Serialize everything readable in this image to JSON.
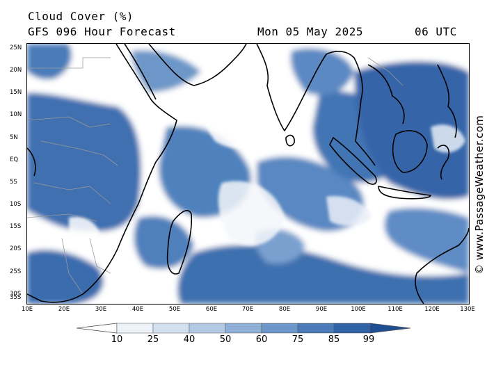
{
  "header": {
    "title": "Cloud Cover (%)",
    "subtitle": "GFS 096 Hour Forecast",
    "date": "Mon 05 May 2025",
    "time": "06 UTC"
  },
  "credit": "© www.PassageWeather.com",
  "map": {
    "lat_labels": [
      "25N",
      "20N",
      "15N",
      "10N",
      "5N",
      "EQ",
      "5S",
      "10S",
      "15S",
      "20S",
      "25S",
      "30S",
      "35S"
    ],
    "lon_labels": [
      "10E",
      "20E",
      "30E",
      "40E",
      "50E",
      "60E",
      "70E",
      "80E",
      "90E",
      "100E",
      "110E",
      "120E",
      "130E"
    ],
    "extent": {
      "lon": [
        10,
        130
      ],
      "lat": [
        -36,
        26
      ]
    }
  },
  "colorbar": {
    "labels": [
      "10",
      "25",
      "40",
      "50",
      "60",
      "75",
      "85",
      "99"
    ],
    "colors": [
      "#ffffff",
      "#eef3f9",
      "#d3e0ef",
      "#b4c9e3",
      "#8fb0d6",
      "#6d97c8",
      "#4a7bb8",
      "#2f62a6",
      "#1f4f93"
    ]
  },
  "colors": {
    "cloud_dark": "#3a6cae",
    "cloud_mid": "#5a88c2",
    "land_outline": "#000000",
    "border": "#9a9a9a"
  }
}
